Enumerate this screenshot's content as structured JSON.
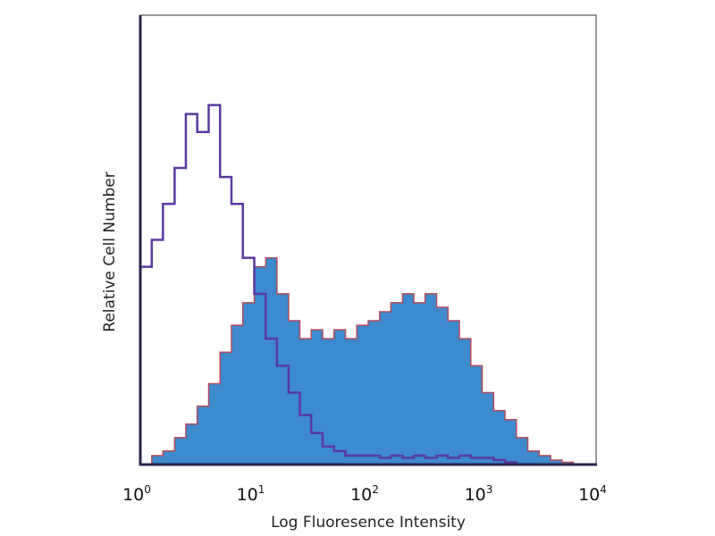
{
  "chart_data": {
    "type": "area",
    "title": "",
    "xlabel": "Log Fluoresence Intensity",
    "ylabel": "Relative Cell Number",
    "x_scale": "log",
    "xlim": [
      1,
      10000
    ],
    "ylim": [
      0,
      100
    ],
    "grid": false,
    "legend": "none",
    "x_ticks": [
      {
        "base": "10",
        "exp": "0"
      },
      {
        "base": "10",
        "exp": "1"
      },
      {
        "base": "10",
        "exp": "2"
      },
      {
        "base": "10",
        "exp": "3"
      },
      {
        "base": "10",
        "exp": "4"
      }
    ],
    "x": [
      1,
      1.26,
      1.58,
      2,
      2.51,
      3.16,
      3.98,
      5.01,
      6.31,
      7.94,
      10,
      12.6,
      15.8,
      20,
      25.1,
      31.6,
      39.8,
      50.1,
      63.1,
      79.4,
      100,
      126,
      158,
      200,
      251,
      316,
      398,
      501,
      631,
      794,
      1000,
      1259,
      1585,
      1995,
      2512,
      3162,
      3981,
      5012,
      6310,
      7943,
      10000
    ],
    "series": [
      {
        "style": "outline",
        "color": "#5a3aa0",
        "values": [
          44,
          50,
          58,
          66,
          78,
          74,
          80,
          64,
          58,
          46,
          38,
          28,
          22,
          16,
          11,
          7,
          4,
          3,
          2,
          2,
          2,
          1.5,
          2,
          1.5,
          2,
          1.5,
          2,
          1.5,
          2,
          1.5,
          1.5,
          1,
          0.5,
          0,
          0,
          0,
          0,
          0,
          0,
          0,
          0
        ]
      },
      {
        "style": "filled",
        "color": "#3d8ace",
        "outline_color": "#b04a5a",
        "values": [
          0,
          2,
          3,
          6,
          9,
          13,
          18,
          25,
          31,
          36,
          44,
          46,
          38,
          32,
          28,
          30,
          28,
          30,
          28,
          31,
          32,
          34,
          36,
          38,
          36,
          38,
          35,
          32,
          28,
          22,
          16,
          12,
          10,
          6,
          3,
          2,
          1,
          0.5,
          0,
          0,
          0
        ]
      }
    ]
  }
}
